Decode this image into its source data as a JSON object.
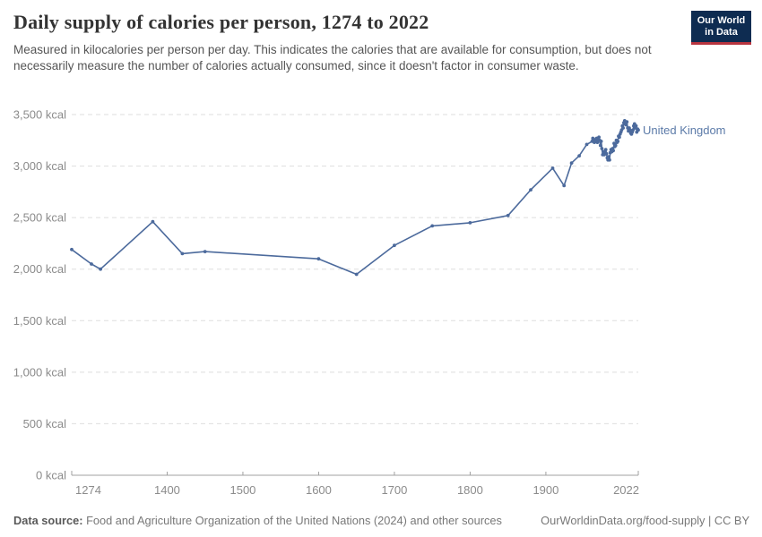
{
  "header": {
    "title": "Daily supply of calories per person, 1274 to 2022",
    "subtitle": "Measured in kilocalories per person per day. This indicates the calories that are available for consumption, but does not necessarily measure the number of calories actually consumed, since it doesn't factor in consumer waste.",
    "logo": {
      "line1": "Our World",
      "line2": "in Data",
      "bg_color": "#0e2c51",
      "stripe_color": "#b7343f"
    }
  },
  "footer": {
    "datasource_label": "Data source:",
    "datasource_text": " Food and Agriculture Organization of the United Nations (2024) and other sources",
    "attribution": "OurWorldinData.org/food-supply | CC BY"
  },
  "chart_data": {
    "type": "line",
    "title": "Daily supply of calories per person, 1274 to 2022",
    "xlabel": "",
    "ylabel": "kcal",
    "unit": "kcal",
    "xlim": [
      1274,
      2022
    ],
    "ylim": [
      0,
      3500
    ],
    "x_ticks": [
      1274,
      1400,
      1500,
      1600,
      1700,
      1800,
      1900,
      2022
    ],
    "y_ticks": [
      0,
      500,
      1000,
      1500,
      2000,
      2500,
      3000,
      3500
    ],
    "grid": "horizontal-dashed",
    "grid_color": "#dedede",
    "axis_color": "#a0a0a0",
    "label_color": "#5b7aa8",
    "legend_position": "end-of-line-label",
    "series": [
      {
        "name": "United Kingdom",
        "color": "#4c6a9c",
        "points": [
          [
            1274,
            2190
          ],
          [
            1300,
            2050
          ],
          [
            1312,
            2000
          ],
          [
            1381,
            2460
          ],
          [
            1420,
            2150
          ],
          [
            1450,
            2170
          ],
          [
            1600,
            2100
          ],
          [
            1650,
            1950
          ],
          [
            1700,
            2230
          ],
          [
            1750,
            2420
          ],
          [
            1800,
            2450
          ],
          [
            1850,
            2520
          ],
          [
            1880,
            2770
          ],
          [
            1909,
            2980
          ],
          [
            1924,
            2810
          ],
          [
            1934,
            3030
          ],
          [
            1944,
            3100
          ],
          [
            1954,
            3210
          ],
          [
            1961,
            3240
          ],
          [
            1962,
            3270
          ],
          [
            1963,
            3250
          ],
          [
            1964,
            3230
          ],
          [
            1965,
            3240
          ],
          [
            1966,
            3260
          ],
          [
            1967,
            3270
          ],
          [
            1968,
            3230
          ],
          [
            1969,
            3250
          ],
          [
            1970,
            3280
          ],
          [
            1971,
            3250
          ],
          [
            1972,
            3200
          ],
          [
            1973,
            3240
          ],
          [
            1974,
            3170
          ],
          [
            1975,
            3110
          ],
          [
            1976,
            3140
          ],
          [
            1977,
            3110
          ],
          [
            1978,
            3140
          ],
          [
            1979,
            3160
          ],
          [
            1980,
            3120
          ],
          [
            1981,
            3080
          ],
          [
            1982,
            3060
          ],
          [
            1983,
            3090
          ],
          [
            1984,
            3060
          ],
          [
            1985,
            3130
          ],
          [
            1986,
            3160
          ],
          [
            1987,
            3140
          ],
          [
            1988,
            3170
          ],
          [
            1989,
            3150
          ],
          [
            1990,
            3220
          ],
          [
            1991,
            3190
          ],
          [
            1992,
            3200
          ],
          [
            1993,
            3250
          ],
          [
            1994,
            3230
          ],
          [
            1995,
            3240
          ],
          [
            1996,
            3290
          ],
          [
            1997,
            3280
          ],
          [
            1998,
            3310
          ],
          [
            1999,
            3330
          ],
          [
            2000,
            3350
          ],
          [
            2001,
            3390
          ],
          [
            2002,
            3370
          ],
          [
            2003,
            3420
          ],
          [
            2004,
            3440
          ],
          [
            2005,
            3410
          ],
          [
            2006,
            3400
          ],
          [
            2007,
            3430
          ],
          [
            2008,
            3370
          ],
          [
            2009,
            3340
          ],
          [
            2010,
            3370
          ],
          [
            2011,
            3350
          ],
          [
            2012,
            3320
          ],
          [
            2013,
            3310
          ],
          [
            2014,
            3330
          ],
          [
            2015,
            3350
          ],
          [
            2016,
            3390
          ],
          [
            2017,
            3410
          ],
          [
            2018,
            3370
          ],
          [
            2019,
            3390
          ],
          [
            2020,
            3330
          ],
          [
            2021,
            3360
          ],
          [
            2022,
            3350
          ]
        ]
      }
    ]
  }
}
